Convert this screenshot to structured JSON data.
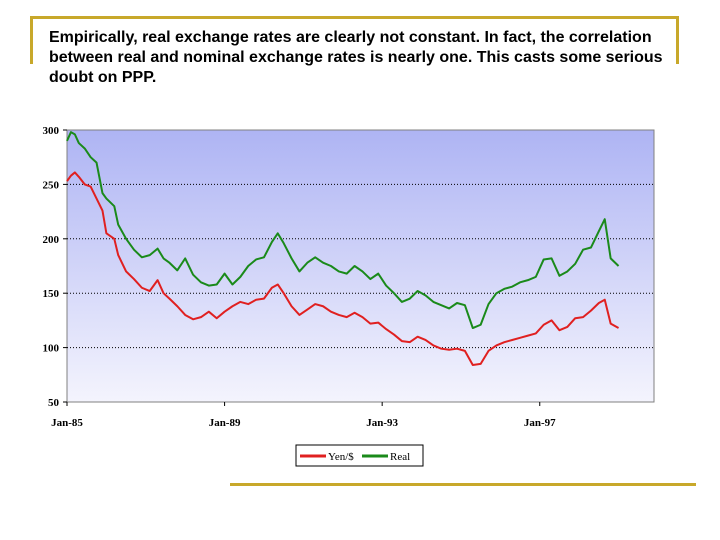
{
  "slide": {
    "text": "Empirically, real exchange rates are clearly not constant. In fact, the correlation between real and nominal exchange rates is nearly one.  This casts some serious doubt on PPP."
  },
  "colors": {
    "plot_top": "#aeb4f4",
    "plot_bottom": "#f4f4fd",
    "yen": "#e02020",
    "real": "#1a8a1a",
    "accent_rule": "#c8a82a"
  },
  "chart_data": {
    "type": "line",
    "title": "",
    "xlabel": "",
    "ylabel": "",
    "ylim": [
      50,
      300
    ],
    "yticks": [
      50,
      100,
      150,
      200,
      250,
      300
    ],
    "xlim": [
      1985,
      1999.9
    ],
    "xticks": [
      {
        "label": "Jan-85",
        "value": 1985
      },
      {
        "label": "Jan-89",
        "value": 1989
      },
      {
        "label": "Jan-93",
        "value": 1993
      },
      {
        "label": "Jan-97",
        "value": 1997
      }
    ],
    "grid": "horizontal dotted",
    "legend": "bottom-center",
    "series": [
      {
        "name": "Yen/$",
        "color": "#e02020",
        "points": [
          [
            1985.0,
            253
          ],
          [
            1985.1,
            258
          ],
          [
            1985.2,
            261
          ],
          [
            1985.3,
            257
          ],
          [
            1985.45,
            250
          ],
          [
            1985.6,
            248
          ],
          [
            1985.75,
            237
          ],
          [
            1985.9,
            226
          ],
          [
            1986.0,
            205
          ],
          [
            1986.2,
            200
          ],
          [
            1986.3,
            185
          ],
          [
            1986.5,
            170
          ],
          [
            1986.7,
            163
          ],
          [
            1986.9,
            155
          ],
          [
            1987.1,
            152
          ],
          [
            1987.3,
            162
          ],
          [
            1987.45,
            150
          ],
          [
            1987.6,
            145
          ],
          [
            1987.8,
            138
          ],
          [
            1988.0,
            130
          ],
          [
            1988.2,
            126
          ],
          [
            1988.4,
            128
          ],
          [
            1988.6,
            133
          ],
          [
            1988.8,
            127
          ],
          [
            1989.0,
            133
          ],
          [
            1989.2,
            138
          ],
          [
            1989.4,
            142
          ],
          [
            1989.6,
            140
          ],
          [
            1989.8,
            144
          ],
          [
            1990.0,
            145
          ],
          [
            1990.2,
            155
          ],
          [
            1990.35,
            158
          ],
          [
            1990.5,
            150
          ],
          [
            1990.7,
            138
          ],
          [
            1990.9,
            130
          ],
          [
            1991.1,
            135
          ],
          [
            1991.3,
            140
          ],
          [
            1991.5,
            138
          ],
          [
            1991.7,
            133
          ],
          [
            1991.9,
            130
          ],
          [
            1992.1,
            128
          ],
          [
            1992.3,
            132
          ],
          [
            1992.5,
            128
          ],
          [
            1992.7,
            122
          ],
          [
            1992.9,
            123
          ],
          [
            1993.1,
            117
          ],
          [
            1993.3,
            112
          ],
          [
            1993.5,
            106
          ],
          [
            1993.7,
            105
          ],
          [
            1993.9,
            110
          ],
          [
            1994.1,
            107
          ],
          [
            1994.3,
            102
          ],
          [
            1994.5,
            99
          ],
          [
            1994.7,
            98
          ],
          [
            1994.9,
            99
          ],
          [
            1995.1,
            97
          ],
          [
            1995.3,
            84
          ],
          [
            1995.5,
            85
          ],
          [
            1995.7,
            97
          ],
          [
            1995.9,
            102
          ],
          [
            1996.1,
            105
          ],
          [
            1996.3,
            107
          ],
          [
            1996.5,
            109
          ],
          [
            1996.7,
            111
          ],
          [
            1996.9,
            113
          ],
          [
            1997.1,
            121
          ],
          [
            1997.3,
            125
          ],
          [
            1997.5,
            116
          ],
          [
            1997.7,
            119
          ],
          [
            1997.9,
            127
          ],
          [
            1998.1,
            128
          ],
          [
            1998.3,
            134
          ],
          [
            1998.5,
            141
          ],
          [
            1998.65,
            144
          ],
          [
            1998.8,
            122
          ],
          [
            1999.0,
            118
          ]
        ]
      },
      {
        "name": "Real",
        "color": "#1a8a1a",
        "points": [
          [
            1985.0,
            290
          ],
          [
            1985.1,
            298
          ],
          [
            1985.2,
            296
          ],
          [
            1985.3,
            288
          ],
          [
            1985.45,
            283
          ],
          [
            1985.6,
            275
          ],
          [
            1985.75,
            270
          ],
          [
            1985.9,
            242
          ],
          [
            1986.0,
            237
          ],
          [
            1986.2,
            230
          ],
          [
            1986.3,
            213
          ],
          [
            1986.5,
            200
          ],
          [
            1986.7,
            190
          ],
          [
            1986.9,
            183
          ],
          [
            1987.1,
            185
          ],
          [
            1987.3,
            191
          ],
          [
            1987.45,
            182
          ],
          [
            1987.6,
            178
          ],
          [
            1987.8,
            171
          ],
          [
            1988.0,
            182
          ],
          [
            1988.2,
            167
          ],
          [
            1988.4,
            160
          ],
          [
            1988.6,
            157
          ],
          [
            1988.8,
            158
          ],
          [
            1989.0,
            168
          ],
          [
            1989.2,
            158
          ],
          [
            1989.4,
            165
          ],
          [
            1989.6,
            175
          ],
          [
            1989.8,
            181
          ],
          [
            1990.0,
            183
          ],
          [
            1990.2,
            197
          ],
          [
            1990.35,
            205
          ],
          [
            1990.5,
            196
          ],
          [
            1990.7,
            182
          ],
          [
            1990.9,
            170
          ],
          [
            1991.1,
            178
          ],
          [
            1991.3,
            183
          ],
          [
            1991.5,
            178
          ],
          [
            1991.7,
            175
          ],
          [
            1991.9,
            170
          ],
          [
            1992.1,
            168
          ],
          [
            1992.3,
            175
          ],
          [
            1992.5,
            170
          ],
          [
            1992.7,
            163
          ],
          [
            1992.9,
            168
          ],
          [
            1993.1,
            157
          ],
          [
            1993.3,
            150
          ],
          [
            1993.5,
            142
          ],
          [
            1993.7,
            145
          ],
          [
            1993.9,
            152
          ],
          [
            1994.1,
            148
          ],
          [
            1994.3,
            142
          ],
          [
            1994.5,
            139
          ],
          [
            1994.7,
            136
          ],
          [
            1994.9,
            141
          ],
          [
            1995.1,
            139
          ],
          [
            1995.3,
            118
          ],
          [
            1995.5,
            121
          ],
          [
            1995.7,
            140
          ],
          [
            1995.9,
            150
          ],
          [
            1996.1,
            154
          ],
          [
            1996.3,
            156
          ],
          [
            1996.5,
            160
          ],
          [
            1996.7,
            162
          ],
          [
            1996.9,
            165
          ],
          [
            1997.1,
            181
          ],
          [
            1997.3,
            182
          ],
          [
            1997.5,
            166
          ],
          [
            1997.7,
            170
          ],
          [
            1997.9,
            177
          ],
          [
            1998.1,
            190
          ],
          [
            1998.3,
            192
          ],
          [
            1998.5,
            207
          ],
          [
            1998.65,
            218
          ],
          [
            1998.8,
            182
          ],
          [
            1999.0,
            175
          ]
        ]
      }
    ]
  }
}
